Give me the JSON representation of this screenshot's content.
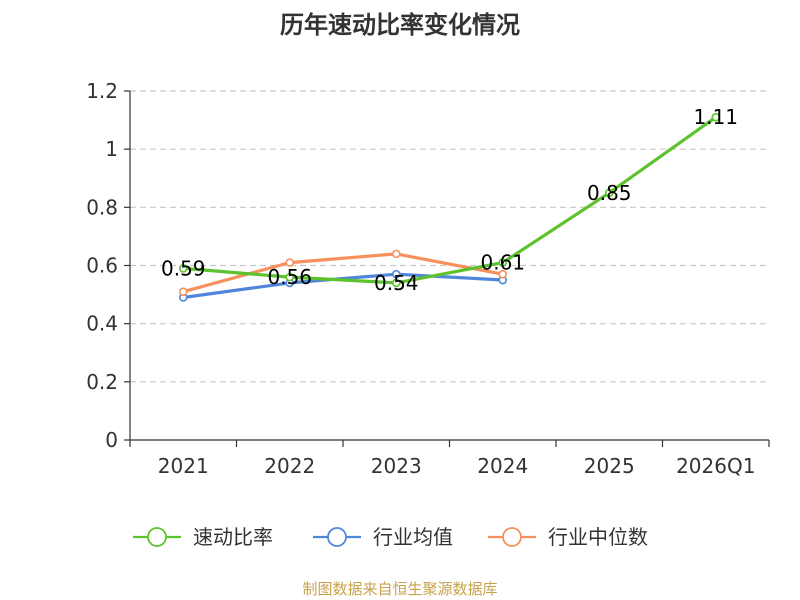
{
  "chart_data": {
    "type": "line",
    "title": "历年速动比率变化情况",
    "categories": [
      "2021",
      "2022",
      "2023",
      "2024",
      "2025",
      "2026Q1"
    ],
    "ylim": [
      0,
      1.2
    ],
    "yticks": [
      "0",
      "0.2",
      "0.4",
      "0.6",
      "0.8",
      "1",
      "1.2"
    ],
    "grid": true,
    "legend_position": "bottom",
    "series": [
      {
        "name": "速动比率",
        "color": "#5cc22d",
        "values": [
          0.59,
          0.56,
          0.54,
          0.61,
          0.85,
          1.11
        ],
        "labels": [
          "0.59",
          "0.56",
          "0.54",
          "0.61",
          "0.85",
          "1.11"
        ]
      },
      {
        "name": "行业均值",
        "color": "#4f86dc",
        "values": [
          0.49,
          0.54,
          0.57,
          0.55,
          null,
          null
        ]
      },
      {
        "name": "行业中位数",
        "color": "#f6905d",
        "values": [
          0.51,
          0.61,
          0.64,
          0.57,
          null,
          null
        ]
      }
    ]
  },
  "source_text": "制图数据来自恒生聚源数据库"
}
